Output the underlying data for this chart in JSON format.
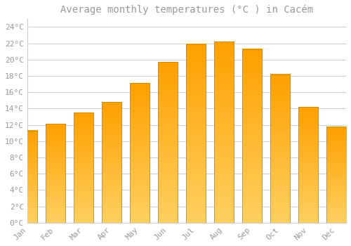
{
  "title": "Average monthly temperatures (°C ) in Cacém",
  "months": [
    "Jan",
    "Feb",
    "Mar",
    "Apr",
    "May",
    "Jun",
    "Jul",
    "Aug",
    "Sep",
    "Oct",
    "Nov",
    "Dec"
  ],
  "values": [
    11.3,
    12.1,
    13.5,
    14.8,
    17.1,
    19.7,
    21.9,
    22.2,
    21.3,
    18.2,
    14.2,
    11.8
  ],
  "bar_color_top": "#FFD060",
  "bar_color_bottom": "#FFA000",
  "background_color": "#FFFFFF",
  "grid_color": "#CCCCCC",
  "text_color": "#999999",
  "ylim": [
    0,
    25
  ],
  "yticks": [
    0,
    2,
    4,
    6,
    8,
    10,
    12,
    14,
    16,
    18,
    20,
    22,
    24
  ],
  "title_fontsize": 10,
  "tick_fontsize": 8,
  "bar_width": 0.7
}
